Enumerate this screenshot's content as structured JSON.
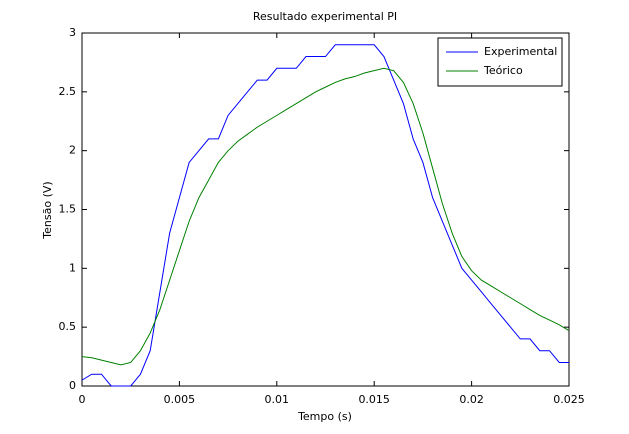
{
  "chart_data": {
    "type": "line",
    "title": "Resultado experimental PI",
    "xlabel": "Tempo (s)",
    "ylabel": "Tensão (V)",
    "x": [
      0,
      0.0005,
      0.001,
      0.0015,
      0.002,
      0.0025,
      0.003,
      0.0035,
      0.004,
      0.0045,
      0.005,
      0.0055,
      0.006,
      0.0065,
      0.007,
      0.0075,
      0.008,
      0.0085,
      0.009,
      0.0095,
      0.01,
      0.0105,
      0.011,
      0.0115,
      0.012,
      0.0125,
      0.013,
      0.0135,
      0.014,
      0.0145,
      0.015,
      0.0155,
      0.016,
      0.0165,
      0.017,
      0.0175,
      0.018,
      0.0185,
      0.019,
      0.0195,
      0.02,
      0.0205,
      0.021,
      0.0215,
      0.022,
      0.0225,
      0.023,
      0.0235,
      0.024,
      0.0245,
      0.025
    ],
    "series": [
      {
        "name": "Experimental",
        "color": "#0000ff",
        "values": [
          0.05,
          0.1,
          0.1,
          0,
          0,
          0,
          0.1,
          0.3,
          0.8,
          1.3,
          1.6,
          1.9,
          2.0,
          2.1,
          2.1,
          2.3,
          2.4,
          2.5,
          2.6,
          2.6,
          2.7,
          2.7,
          2.7,
          2.8,
          2.8,
          2.8,
          2.9,
          2.9,
          2.9,
          2.9,
          2.9,
          2.8,
          2.6,
          2.4,
          2.1,
          1.9,
          1.6,
          1.4,
          1.2,
          1.0,
          0.9,
          0.8,
          0.7,
          0.6,
          0.5,
          0.4,
          0.4,
          0.3,
          0.3,
          0.2,
          0.2
        ]
      },
      {
        "name": "Teórico",
        "color": "#008000",
        "values": [
          0.25,
          0.24,
          0.22,
          0.2,
          0.18,
          0.2,
          0.3,
          0.45,
          0.65,
          0.9,
          1.15,
          1.4,
          1.6,
          1.75,
          1.9,
          2.0,
          2.08,
          2.14,
          2.2,
          2.25,
          2.3,
          2.35,
          2.4,
          2.45,
          2.5,
          2.54,
          2.58,
          2.61,
          2.63,
          2.66,
          2.68,
          2.7,
          2.68,
          2.58,
          2.4,
          2.15,
          1.85,
          1.55,
          1.3,
          1.1,
          0.98,
          0.9,
          0.85,
          0.8,
          0.75,
          0.7,
          0.65,
          0.6,
          0.56,
          0.52,
          0.47
        ]
      }
    ],
    "xlim": [
      0,
      0.025
    ],
    "xticks": [
      0,
      0.005,
      0.01,
      0.015,
      0.02,
      0.025
    ],
    "ylim": [
      0,
      3
    ],
    "yticks": [
      0,
      0.5,
      1,
      1.5,
      2,
      2.5,
      3
    ],
    "grid": false,
    "legend": "northeast"
  }
}
